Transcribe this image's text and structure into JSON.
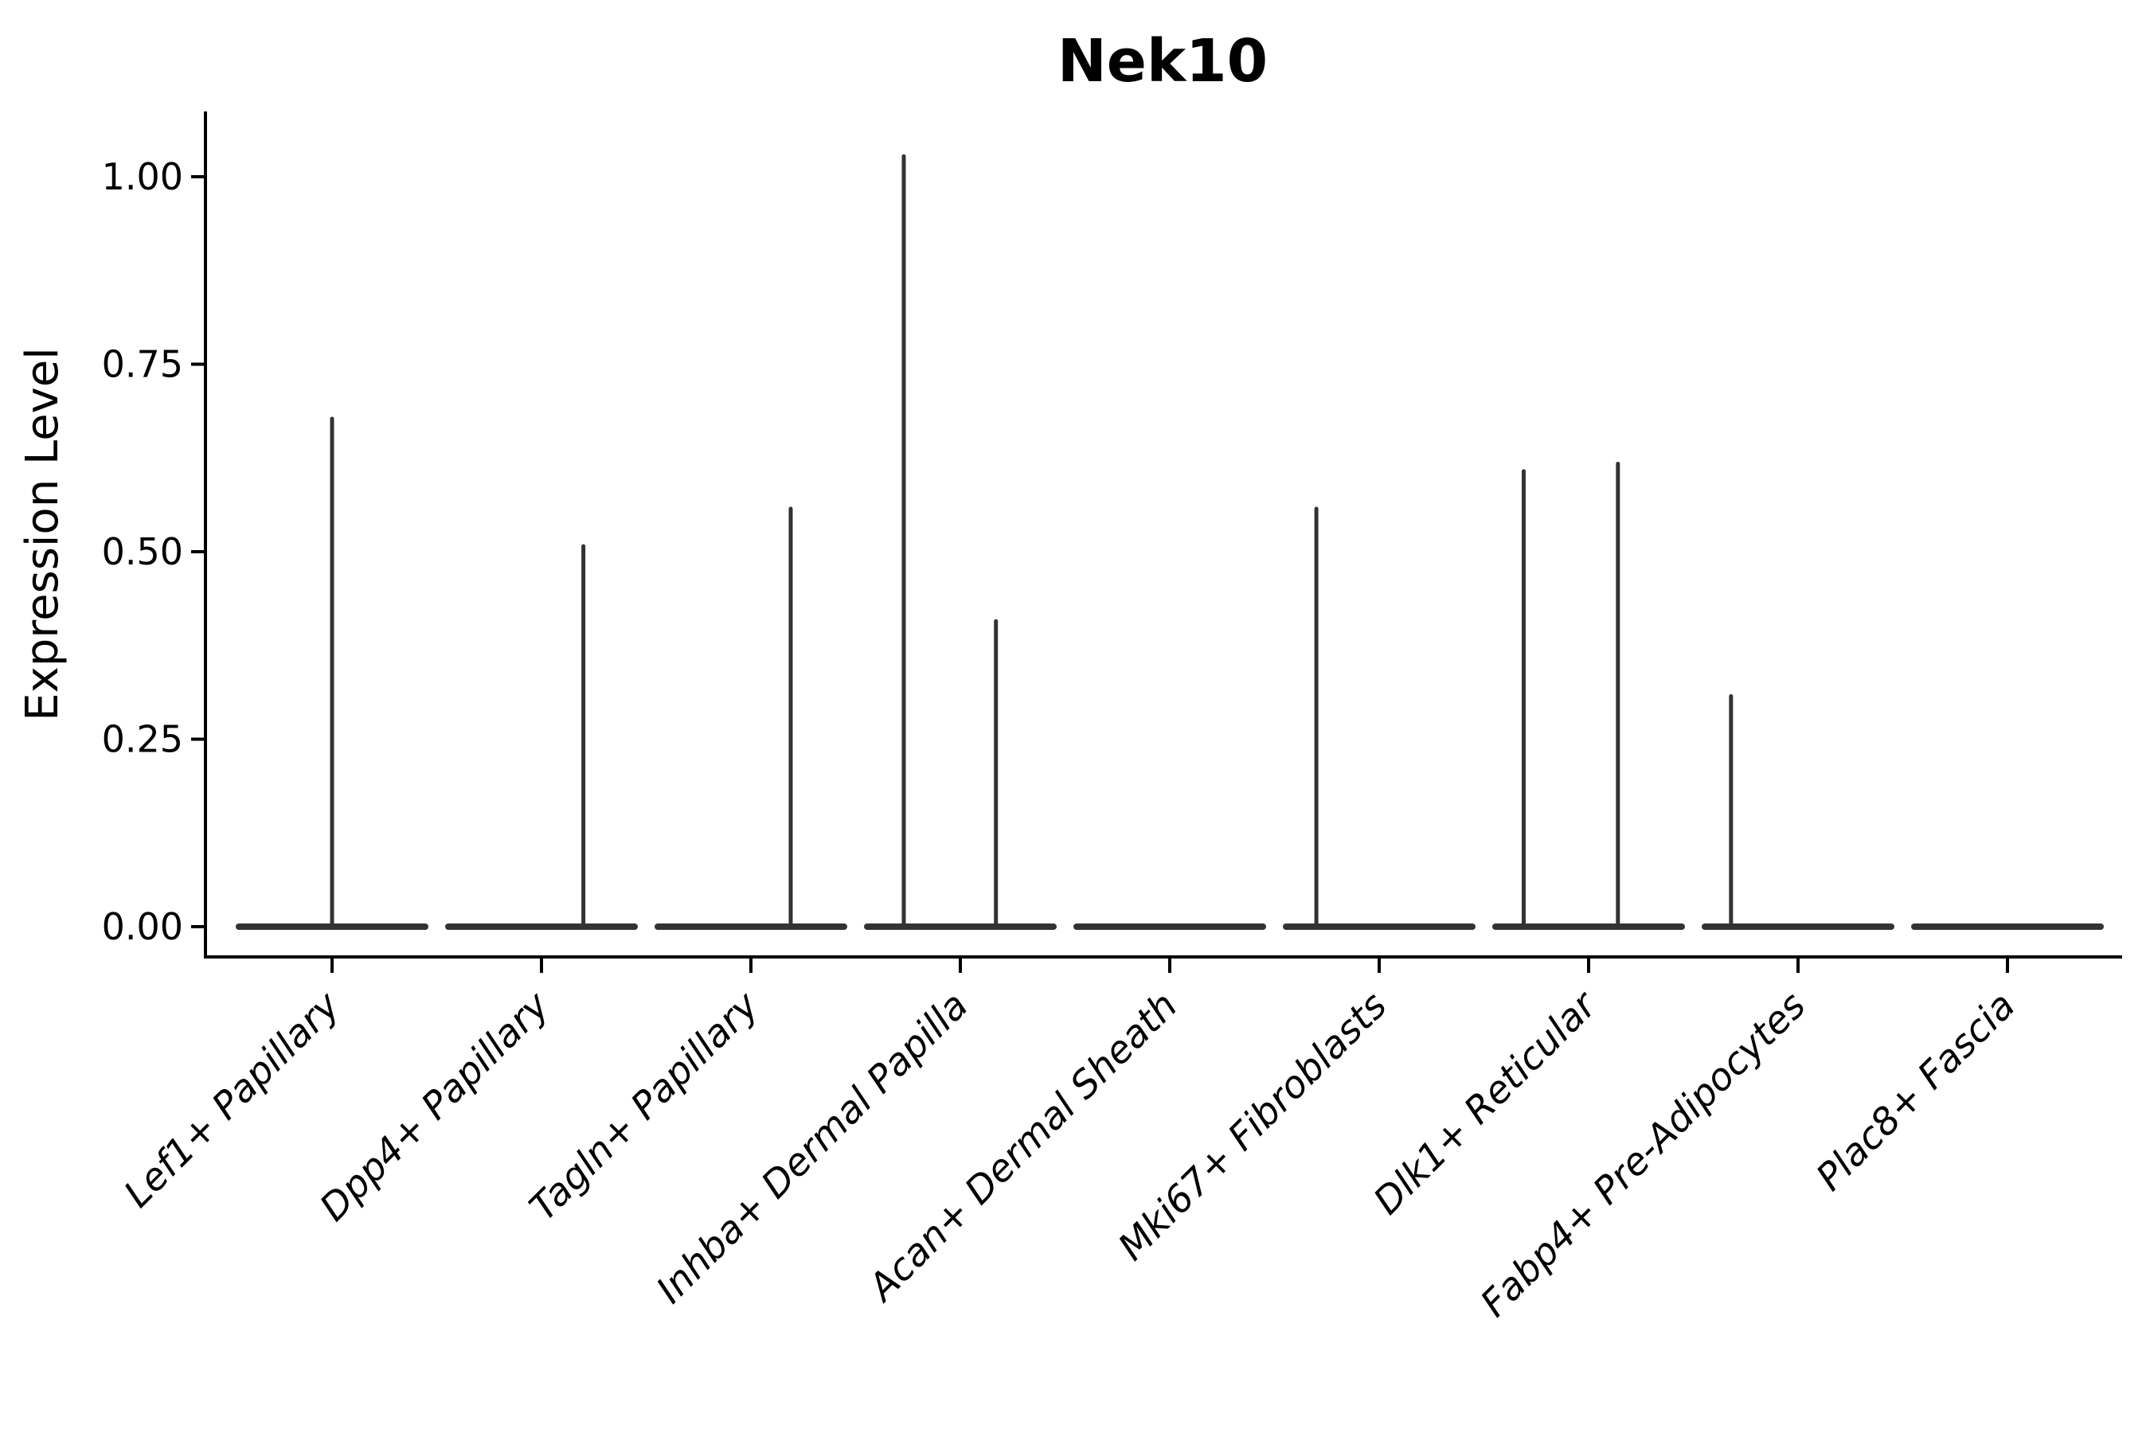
{
  "title": "Nek10",
  "axes": {
    "y_label": "Expression Level",
    "y_tick_labels": [
      "0.00",
      "0.25",
      "0.50",
      "0.75",
      "1.00"
    ],
    "x_label": ""
  },
  "chart_data": {
    "type": "violin",
    "title": "Nek10",
    "xlabel": "",
    "ylabel": "Expression Level",
    "ylim": [
      0,
      1.08
    ],
    "yticks": [
      0.0,
      0.25,
      0.5,
      0.75,
      1.0
    ],
    "ytick_labels": [
      "0.00",
      "0.25",
      "0.50",
      "0.75",
      "1.00"
    ],
    "grid": false,
    "legend_position": "none",
    "violin_color": "#333333",
    "axis_color": "#000000",
    "categories": [
      "Lef1+ Papillary",
      "Dpp4+ Papillary",
      "Tagln+ Papillary",
      "Inhba+ Dermal Papilla",
      "Acan+ Dermal Sheath",
      "Mki67+ Fibroblasts",
      "Dlk1+ Reticular",
      "Fabp4+ Pre-Adipocytes",
      "Plac8+ Fascia"
    ],
    "violins": [
      {
        "category": "Lef1+ Papillary",
        "max_expression": 0.68,
        "spikes": [
          {
            "value": 0.68,
            "offset": 0.0
          }
        ]
      },
      {
        "category": "Dpp4+ Papillary",
        "max_expression": 0.51,
        "spikes": [
          {
            "value": 0.51,
            "offset": 0.2
          }
        ]
      },
      {
        "category": "Tagln+ Papillary",
        "max_expression": 0.56,
        "spikes": [
          {
            "value": 0.56,
            "offset": 0.19
          }
        ]
      },
      {
        "category": "Inhba+ Dermal Papilla",
        "max_expression": 1.03,
        "spikes": [
          {
            "value": 1.03,
            "offset": -0.27
          },
          {
            "value": 0.41,
            "offset": 0.17
          }
        ]
      },
      {
        "category": "Acan+ Dermal Sheath",
        "max_expression": 0.0,
        "spikes": []
      },
      {
        "category": "Mki67+ Fibroblasts",
        "max_expression": 0.56,
        "spikes": [
          {
            "value": 0.56,
            "offset": -0.3
          }
        ]
      },
      {
        "category": "Dlk1+ Reticular",
        "max_expression": 0.62,
        "spikes": [
          {
            "value": 0.61,
            "offset": -0.31
          },
          {
            "value": 0.62,
            "offset": 0.14
          }
        ]
      },
      {
        "category": "Fabp4+ Pre-Adipocytes",
        "max_expression": 0.31,
        "spikes": [
          {
            "value": 0.31,
            "offset": -0.32
          }
        ]
      },
      {
        "category": "Plac8+ Fascia",
        "max_expression": 0.0,
        "spikes": []
      }
    ]
  }
}
